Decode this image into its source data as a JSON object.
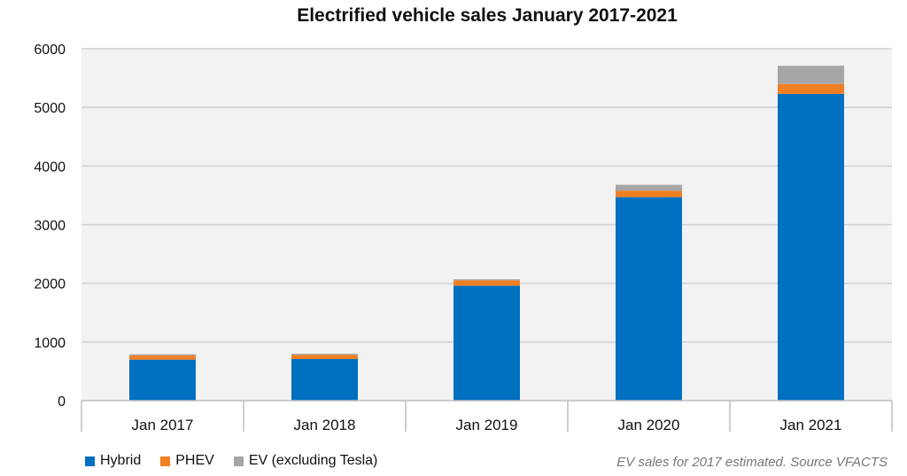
{
  "chart_data": {
    "type": "bar",
    "stacked": true,
    "title": "Electrified vehicle sales January 2017-2021",
    "categories": [
      "Jan 2017",
      "Jan 2018",
      "Jan 2019",
      "Jan 2020",
      "Jan 2021"
    ],
    "series": [
      {
        "name": "Hybrid",
        "color": "#0070C0",
        "values": [
          700,
          710,
          1960,
          3470,
          5230
        ]
      },
      {
        "name": "PHEV",
        "color": "#F07F22",
        "values": [
          70,
          70,
          90,
          110,
          170
        ]
      },
      {
        "name": "EV (excluding Tesla)",
        "color": "#A6A6A6",
        "values": [
          20,
          20,
          20,
          100,
          310
        ]
      }
    ],
    "y_ticks": [
      "0",
      "1000",
      "2000",
      "3000",
      "4000",
      "5000",
      "6000"
    ],
    "ylim": [
      0,
      6000
    ],
    "grid": true,
    "legend_position": "bottom-left",
    "note": "EV sales for 2017 estimated. Source VFACTS"
  }
}
